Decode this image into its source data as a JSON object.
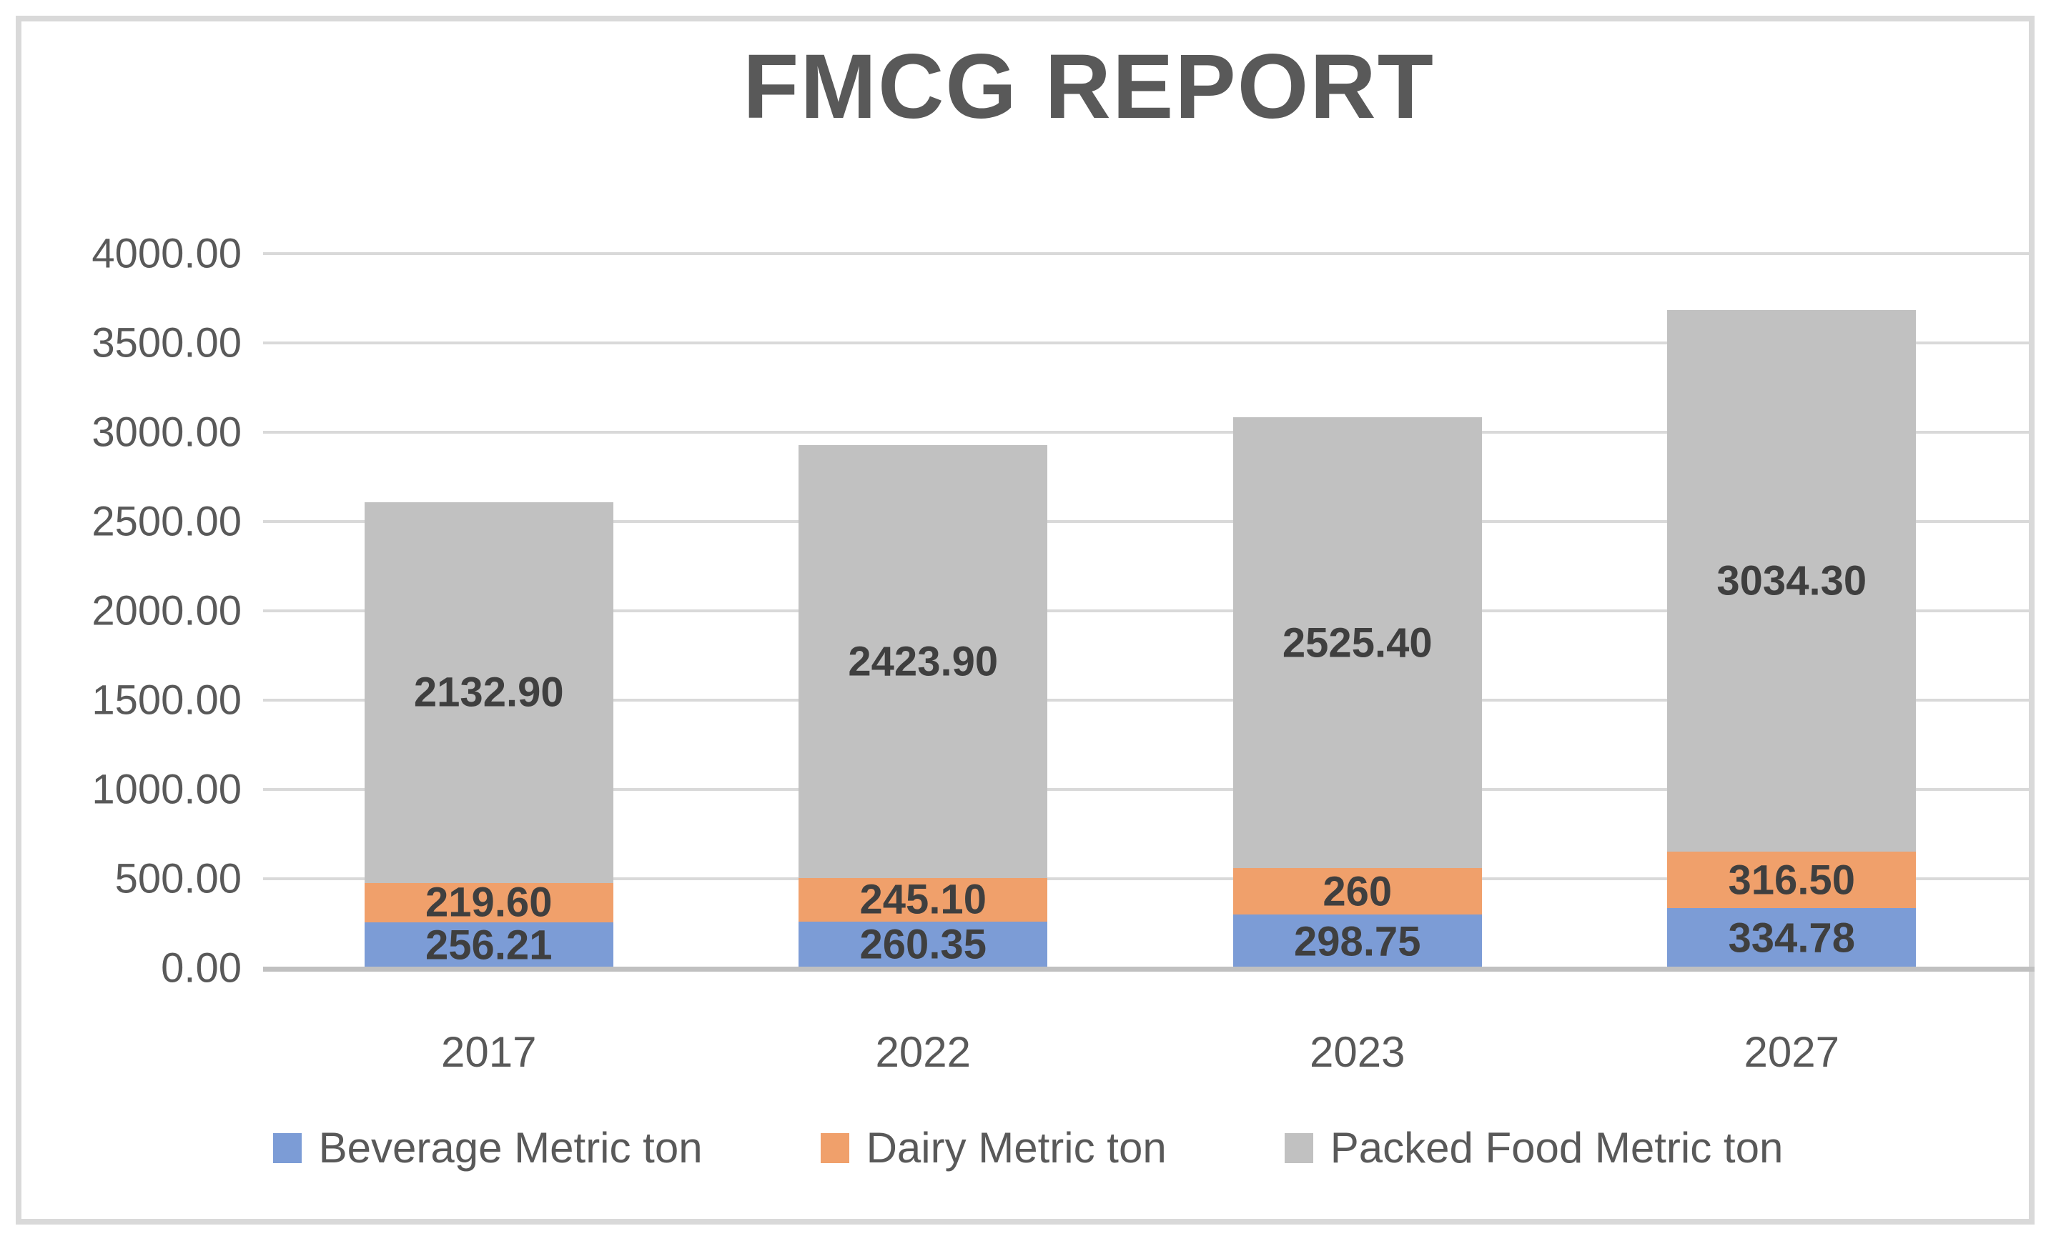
{
  "title": "FMCG REPORT",
  "chart_data": {
    "type": "bar",
    "stacked": true,
    "title": "FMCG REPORT",
    "categories": [
      "2017",
      "2022",
      "2023",
      "2027"
    ],
    "series": [
      {
        "name": "Beverage Metric ton",
        "color": "#7C9CD6",
        "values": [
          256.21,
          260.35,
          298.75,
          334.78
        ],
        "value_labels": [
          "256.21",
          "260.35",
          "298.75",
          "334.78"
        ]
      },
      {
        "name": "Dairy Metric ton",
        "color": "#F0A06B",
        "values": [
          219.6,
          245.1,
          260,
          316.5
        ],
        "value_labels": [
          "219.60",
          "245.10",
          "260",
          "316.50"
        ]
      },
      {
        "name": "Packed Food Metric ton",
        "color": "#C1C1C1",
        "values": [
          2132.9,
          2423.9,
          2525.4,
          3034.3
        ],
        "value_labels": [
          "2132.90",
          "2423.90",
          "2525.40",
          "3034.30"
        ]
      }
    ],
    "xlabel": "",
    "ylabel": "",
    "ylim": [
      0,
      4000
    ],
    "ytick_step": 500,
    "ytick_labels": [
      "0.00",
      "500.00",
      "1000.00",
      "1500.00",
      "2000.00",
      "2500.00",
      "3000.00",
      "3500.00",
      "4000.00"
    ],
    "grid": true,
    "legend_position": "bottom",
    "legend": [
      "Beverage Metric ton",
      "Dairy Metric ton",
      "Packed Food Metric ton"
    ]
  },
  "styles": {
    "title_color": "#595959",
    "axis_text_color": "#595959",
    "data_label_color": "#3F3F3F",
    "gridline_color": "#D9D9D9",
    "axis_line_color": "#C0C0C0",
    "frame_border_color": "#D9D9D9",
    "background": "#FFFFFF"
  }
}
